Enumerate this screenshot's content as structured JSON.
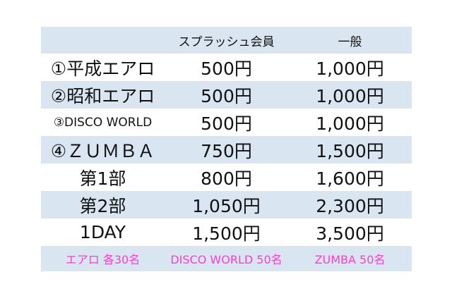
{
  "table": {
    "headers": [
      "",
      "スプラッシュ会員",
      "一般"
    ],
    "rows": [
      {
        "name": "①平成エアロ",
        "member": "500円",
        "general": "1,000円"
      },
      {
        "name": "②昭和エアロ",
        "member": "500円",
        "general": "1,000円"
      },
      {
        "name": "③DISCO WORLD",
        "member": "500円",
        "general": "1,000円"
      },
      {
        "name": "④ＺＵＭＢＡ",
        "member": "750円",
        "general": "1,500円"
      },
      {
        "name": "第1部",
        "member": "800円",
        "general": "1,600円"
      },
      {
        "name": "第2部",
        "member": "1,050円",
        "general": "2,300円"
      },
      {
        "name": "1DAY",
        "member": "1,500円",
        "general": "3,500円"
      }
    ],
    "footer": [
      "エアロ 各30名",
      "DISCO WORLD 50名",
      "ZUMBA 50名"
    ]
  },
  "colors": {
    "shade": "#d9e6f1",
    "footer_text": "#ff3ccf"
  }
}
